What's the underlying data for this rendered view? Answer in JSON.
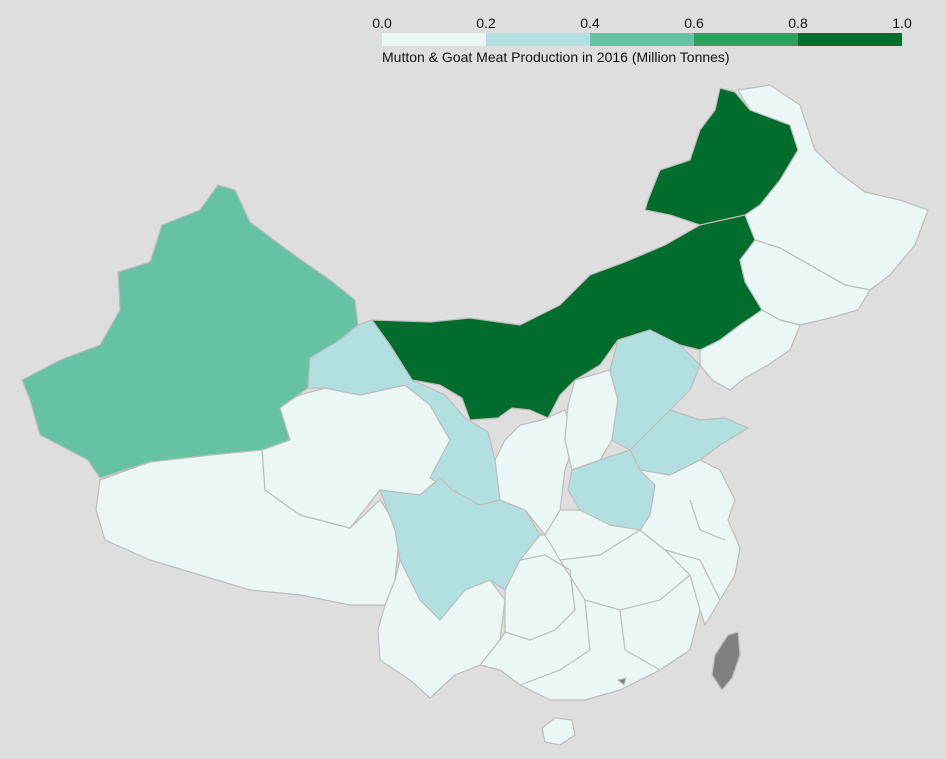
{
  "legend": {
    "title": "Mutton & Goat Meat Production in 2016 (Million Tonnes)",
    "ticks": [
      "0.0",
      "0.2",
      "0.4",
      "0.6",
      "0.8",
      "1.0"
    ],
    "colors": [
      "#ebf6f6",
      "#b2e0e0",
      "#66c2a4",
      "#2ca25f",
      "#006d2c"
    ]
  },
  "map": {
    "colors": {
      "background": "#dedede",
      "very_low": "#ebf6f6",
      "low": "#b2e0e0",
      "medium": "#66c2a4",
      "high": "#006d2c",
      "no_data": "#808080"
    },
    "regions": [
      {
        "id": "xinjiang",
        "level": "medium"
      },
      {
        "id": "inner-mongolia",
        "level": "high"
      },
      {
        "id": "gansu",
        "level": "low"
      },
      {
        "id": "ningxia",
        "level": "low"
      },
      {
        "id": "sichuan",
        "level": "low"
      },
      {
        "id": "hebei",
        "level": "low"
      },
      {
        "id": "shandong",
        "level": "low"
      },
      {
        "id": "henan",
        "level": "low"
      },
      {
        "id": "tibet",
        "level": "very_low"
      },
      {
        "id": "qinghai",
        "level": "very_low"
      },
      {
        "id": "heilongjiang",
        "level": "very_low"
      },
      {
        "id": "jilin",
        "level": "very_low"
      },
      {
        "id": "liaoning",
        "level": "very_low"
      },
      {
        "id": "shanxi",
        "level": "very_low"
      },
      {
        "id": "shaanxi",
        "level": "very_low"
      },
      {
        "id": "yunnan",
        "level": "very_low"
      },
      {
        "id": "guizhou",
        "level": "very_low"
      },
      {
        "id": "south-central",
        "level": "very_low"
      },
      {
        "id": "east-coast",
        "level": "very_low"
      },
      {
        "id": "hainan",
        "level": "very_low"
      },
      {
        "id": "taiwan",
        "level": "no_data"
      },
      {
        "id": "hong-kong",
        "level": "no_data"
      }
    ]
  }
}
